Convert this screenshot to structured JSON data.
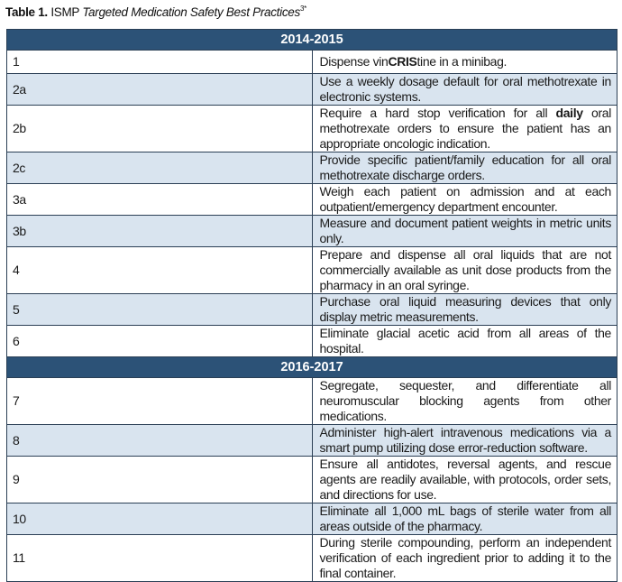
{
  "caption": {
    "label": "Table 1.",
    "org": "ISMP",
    "title": "Targeted Medication Safety Best Practices",
    "superscript": "3*"
  },
  "sections": [
    {
      "heading": "2014-2015",
      "rows": [
        {
          "num": "1",
          "before": "Dispense vin",
          "bold": "CRIS",
          "after": "tine in a minibag."
        },
        {
          "num": "2a",
          "before": "Use a weekly dosage default for oral methotrexate in electronic systems.",
          "bold": "",
          "after": ""
        },
        {
          "num": "2b",
          "before": "Require a hard stop verification for all ",
          "bold": "daily",
          "after": " oral methotrexate orders to ensure the patient has an appropriate oncologic indication."
        },
        {
          "num": "2c",
          "before": "Provide specific patient/family education for all oral methotrexate discharge orders.",
          "bold": "",
          "after": ""
        },
        {
          "num": "3a",
          "before": "Weigh each patient on admission and at each outpatient/emergency department encounter.",
          "bold": "",
          "after": ""
        },
        {
          "num": "3b",
          "before": "Measure and document patient weights in metric units only.",
          "bold": "",
          "after": ""
        },
        {
          "num": "4",
          "before": "Prepare and dispense all oral liquids that are not commercially available as unit dose products from the pharmacy in an oral syringe.",
          "bold": "",
          "after": ""
        },
        {
          "num": "5",
          "before": "Purchase oral liquid measuring devices that only display metric measurements.",
          "bold": "",
          "after": ""
        },
        {
          "num": "6",
          "before": "Eliminate glacial acetic acid from all areas of the hospital.",
          "bold": "",
          "after": ""
        }
      ]
    },
    {
      "heading": "2016-2017",
      "rows": [
        {
          "num": "7",
          "before": "Segregate, sequester, and differentiate all neuromuscular blocking agents from other medications.",
          "bold": "",
          "after": ""
        },
        {
          "num": "8",
          "before": "Administer high-alert intravenous medications via a smart pump utilizing dose error-reduction software.",
          "bold": "",
          "after": ""
        },
        {
          "num": "9",
          "before": "Ensure all antidotes, reversal agents, and rescue agents are readily available, with protocols, order sets, and directions for use.",
          "bold": "",
          "after": ""
        },
        {
          "num": "10",
          "before": "Eliminate all 1,000 mL bags of sterile water from all areas outside of the pharmacy.",
          "bold": "",
          "after": ""
        },
        {
          "num": "11",
          "before": "During sterile compounding, perform an independent verification of each ingredient prior to adding it to the final container.",
          "bold": "",
          "after": ""
        }
      ]
    }
  ],
  "colors": {
    "header_bg": "#2c5277",
    "header_text": "#ffffff",
    "row_shade": "#d9e4ef",
    "row_plain": "#ffffff",
    "border": "#2b3f55"
  }
}
